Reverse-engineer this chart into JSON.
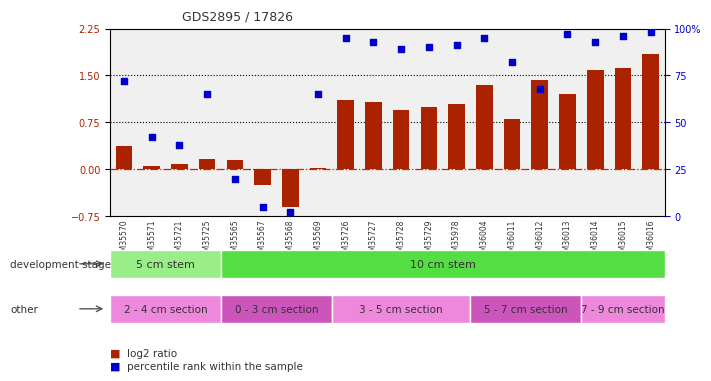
{
  "title": "GDS2895 / 17826",
  "samples": [
    "GSM35570",
    "GSM35571",
    "GSM35721",
    "GSM35725",
    "GSM35565",
    "GSM35567",
    "GSM35568",
    "GSM35569",
    "GSM35726",
    "GSM35727",
    "GSM35728",
    "GSM35729",
    "GSM35978",
    "GSM36004",
    "GSM36011",
    "GSM36012",
    "GSM36013",
    "GSM36014",
    "GSM36015",
    "GSM36016"
  ],
  "log2_ratio": [
    0.37,
    0.05,
    0.08,
    0.16,
    0.15,
    -0.25,
    -0.6,
    0.02,
    1.1,
    1.08,
    0.95,
    1.0,
    1.05,
    1.35,
    0.8,
    1.42,
    1.2,
    1.58,
    1.62,
    1.85
  ],
  "percentile": [
    72,
    42,
    38,
    65,
    20,
    5,
    2,
    65,
    95,
    93,
    89,
    90,
    91,
    95,
    82,
    68,
    97,
    93,
    96,
    98
  ],
  "bar_color": "#aa2200",
  "dot_color": "#0000cc",
  "hline_color": "#cc2200",
  "dotted_lines": [
    0.75,
    1.5
  ],
  "ylim_left": [
    -0.75,
    2.25
  ],
  "ylim_right": [
    0,
    100
  ],
  "right_ticks": [
    0,
    25,
    50,
    75,
    100
  ],
  "right_tick_labels": [
    "0",
    "25",
    "50",
    "75",
    "100%"
  ],
  "left_ticks": [
    -0.75,
    0,
    0.75,
    1.5,
    2.25
  ],
  "dev_stage_groups": [
    {
      "label": "5 cm stem",
      "start": 0,
      "end": 4,
      "color": "#99ee88"
    },
    {
      "label": "10 cm stem",
      "start": 4,
      "end": 20,
      "color": "#55dd44"
    }
  ],
  "other_groups": [
    {
      "label": "2 - 4 cm section",
      "start": 0,
      "end": 4,
      "color": "#ee88dd"
    },
    {
      "label": "0 - 3 cm section",
      "start": 4,
      "end": 8,
      "color": "#cc55bb"
    },
    {
      "label": "3 - 5 cm section",
      "start": 8,
      "end": 13,
      "color": "#ee88dd"
    },
    {
      "label": "5 - 7 cm section",
      "start": 13,
      "end": 17,
      "color": "#cc55bb"
    },
    {
      "label": "7 - 9 cm section",
      "start": 17,
      "end": 20,
      "color": "#ee88dd"
    }
  ],
  "legend_items": [
    {
      "label": "log2 ratio",
      "color": "#aa2200"
    },
    {
      "label": "percentile rank within the sample",
      "color": "#0000cc"
    }
  ],
  "bg_color": "#ffffff",
  "plot_bg_color": "#f0f0f0",
  "dev_stage_label": "development stage",
  "other_label": "other"
}
